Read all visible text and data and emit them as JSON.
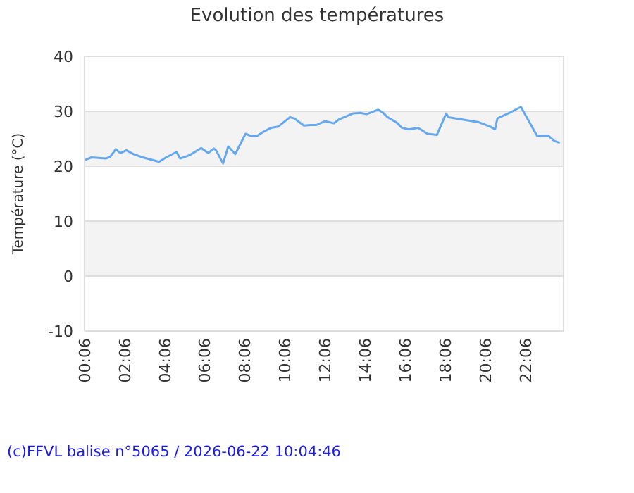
{
  "chart_data": {
    "type": "line",
    "title": "Evolution des températures",
    "ylabel": "Température (°C)",
    "x": [
      0.17,
      0.45,
      1.15,
      1.38,
      1.66,
      1.89,
      2.19,
      2.54,
      3.01,
      3.82,
      4.17,
      4.69,
      4.87,
      5.34,
      5.92,
      6.27,
      6.55,
      6.66,
      7.01,
      7.27,
      7.62,
      8.13,
      8.41,
      8.71,
      8.95,
      9.41,
      9.76,
      10.34,
      10.57,
      11.04,
      11.39,
      11.67,
      12.09,
      12.55,
      12.79,
      13.49,
      13.84,
      14.19,
      14.76,
      15.0,
      15.23,
      15.69,
      15.93,
      16.28,
      16.74,
      17.21,
      17.68,
      18.14,
      18.26,
      19.77,
      20.35,
      20.58,
      20.7,
      21.4,
      21.87,
      22.68,
      23.26,
      23.54,
      23.77
    ],
    "series": [
      {
        "color": "#66a8ee",
        "values": [
          21.2,
          21.6,
          21.4,
          21.7,
          23.1,
          22.4,
          22.9,
          22.2,
          21.6,
          20.8,
          21.6,
          22.6,
          21.4,
          22.0,
          23.3,
          22.4,
          23.2,
          22.9,
          20.5,
          23.6,
          22.2,
          25.9,
          25.5,
          25.5,
          26.1,
          27.0,
          27.2,
          28.9,
          28.7,
          27.4,
          27.5,
          27.5,
          28.2,
          27.8,
          28.5,
          29.6,
          29.7,
          29.5,
          30.3,
          29.7,
          28.9,
          27.9,
          27.0,
          26.7,
          27.0,
          25.9,
          25.7,
          29.6,
          28.9,
          28.0,
          27.2,
          26.7,
          28.7,
          29.9,
          30.8,
          25.5,
          25.5,
          24.6,
          24.3
        ]
      }
    ],
    "xlim": [
      0.1,
      24
    ],
    "xticks": [
      {
        "value": 0.1,
        "label": "00:06"
      },
      {
        "value": 2.1,
        "label": "02:06"
      },
      {
        "value": 4.1,
        "label": "04:06"
      },
      {
        "value": 6.1,
        "label": "06:06"
      },
      {
        "value": 8.1,
        "label": "08:06"
      },
      {
        "value": 10.1,
        "label": "10:06"
      },
      {
        "value": 12.1,
        "label": "12:06"
      },
      {
        "value": 14.1,
        "label": "14:06"
      },
      {
        "value": 16.1,
        "label": "16:06"
      },
      {
        "value": 18.1,
        "label": "18:06"
      },
      {
        "value": 20.1,
        "label": "20:06"
      },
      {
        "value": 22.1,
        "label": "22:06"
      }
    ],
    "ylim": [
      -10,
      40
    ],
    "yticks": [
      -10,
      0,
      10,
      20,
      30,
      40
    ],
    "grid": "y",
    "marker": "none",
    "line_style": "solid",
    "annotations": [
      "(c)FFVL balise n°5065 / 2026-06-22 10:04:46"
    ]
  }
}
